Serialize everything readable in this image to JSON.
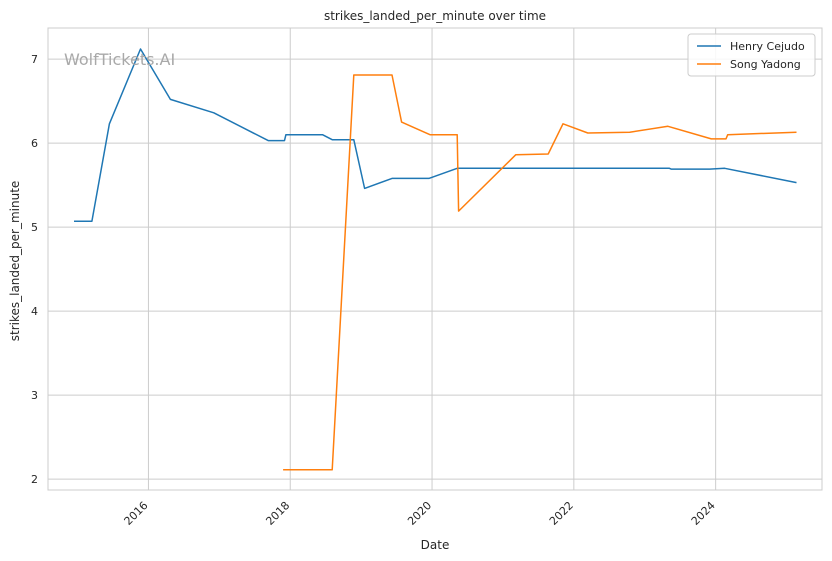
{
  "chart_data": {
    "type": "line",
    "title": "strikes_landed_per_minute over time",
    "xlabel": "Date",
    "ylabel": "strikes_landed_per_minute",
    "x_ticks": [
      "2016",
      "2018",
      "2020",
      "2022",
      "2024"
    ],
    "y_ticks": [
      "2",
      "3",
      "4",
      "5",
      "6",
      "7"
    ],
    "xlim": [
      "2014-08-01",
      "2025-07-01"
    ],
    "ylim": [
      1.87,
      7.37
    ],
    "grid": true,
    "legend_placement": "top-right",
    "watermark": "WolfTickets.AI",
    "series": [
      {
        "name": "Henry Cejudo",
        "color": "#1f77b4",
        "points": [
          [
            "2014-12-13",
            5.07
          ],
          [
            "2015-03-14",
            5.07
          ],
          [
            "2015-06-13",
            6.23
          ],
          [
            "2015-11-21",
            7.12
          ],
          [
            "2016-04-23",
            6.52
          ],
          [
            "2016-12-03",
            6.36
          ],
          [
            "2017-09-09",
            6.03
          ],
          [
            "2017-12-02",
            6.03
          ],
          [
            "2017-12-09",
            6.1
          ],
          [
            "2018-06-15",
            6.1
          ],
          [
            "2018-08-04",
            6.04
          ],
          [
            "2018-11-24",
            6.04
          ],
          [
            "2019-01-19",
            5.46
          ],
          [
            "2019-06-08",
            5.58
          ],
          [
            "2019-12-15",
            5.58
          ],
          [
            "2020-05-09",
            5.7
          ],
          [
            "2023-05-06",
            5.7
          ],
          [
            "2023-05-15",
            5.69
          ],
          [
            "2023-12-01",
            5.69
          ],
          [
            "2024-02-17",
            5.7
          ],
          [
            "2025-02-22",
            5.53
          ]
        ]
      },
      {
        "name": "Song Yadong",
        "color": "#ff7f0e",
        "points": [
          [
            "2017-11-25",
            2.11
          ],
          [
            "2018-08-04",
            2.11
          ],
          [
            "2018-11-24",
            6.81
          ],
          [
            "2019-06-08",
            6.81
          ],
          [
            "2019-07-27",
            6.25
          ],
          [
            "2019-12-21",
            6.1
          ],
          [
            "2020-05-09",
            6.1
          ],
          [
            "2020-05-16",
            5.19
          ],
          [
            "2021-03-06",
            5.86
          ],
          [
            "2021-08-21",
            5.87
          ],
          [
            "2021-11-06",
            6.23
          ],
          [
            "2022-03-12",
            6.12
          ],
          [
            "2022-10-15",
            6.13
          ],
          [
            "2023-04-29",
            6.2
          ],
          [
            "2023-12-09",
            6.05
          ],
          [
            "2024-02-24",
            6.05
          ],
          [
            "2024-03-02",
            6.1
          ],
          [
            "2025-02-22",
            6.13
          ]
        ]
      }
    ]
  }
}
